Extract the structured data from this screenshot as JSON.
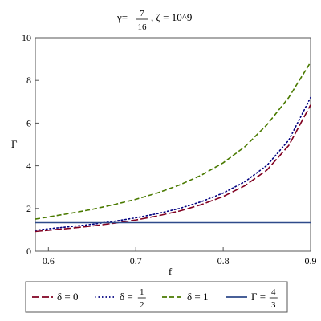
{
  "chart_data": {
    "type": "line",
    "title": {
      "gamma_label": "γ=",
      "gamma_num": "7",
      "gamma_den": "16",
      "rest": ", ζ = 10^9"
    },
    "xlabel": "f",
    "ylabel": "Γ",
    "xlim": [
      0.585,
      0.9
    ],
    "ylim": [
      0,
      10
    ],
    "x_ticks": [
      "0.6",
      "0.7",
      "0.8",
      "0.9"
    ],
    "x_tick_values": [
      0.6,
      0.7,
      0.8,
      0.9
    ],
    "y_ticks": [
      "0",
      "2",
      "4",
      "6",
      "8",
      "10"
    ],
    "y_tick_values": [
      0,
      2,
      4,
      6,
      8,
      10
    ],
    "grid": false,
    "legend_position": "bottom",
    "x": [
      0.585,
      0.6,
      0.625,
      0.65,
      0.675,
      0.7,
      0.725,
      0.75,
      0.775,
      0.8,
      0.825,
      0.85,
      0.875,
      0.9
    ],
    "series": [
      {
        "legend_left": "δ = 0",
        "color": "#800020",
        "style": "longdash",
        "values": [
          0.92,
          0.98,
          1.07,
          1.18,
          1.31,
          1.46,
          1.65,
          1.88,
          2.18,
          2.56,
          3.07,
          3.8,
          4.95,
          6.85
        ]
      },
      {
        "legend_left": "δ =",
        "legend_num": "1",
        "legend_den": "2",
        "color": "#000080",
        "style": "dot",
        "values": [
          0.98,
          1.05,
          1.15,
          1.26,
          1.4,
          1.56,
          1.76,
          2.0,
          2.32,
          2.72,
          3.26,
          4.02,
          5.2,
          7.2
        ]
      },
      {
        "legend_left": "δ = 1",
        "color": "#4a7a00",
        "style": "dash",
        "values": [
          1.5,
          1.6,
          1.77,
          1.96,
          2.18,
          2.43,
          2.73,
          3.1,
          3.56,
          4.14,
          4.9,
          5.92,
          7.2,
          8.85
        ]
      },
      {
        "legend_left": "Γ =",
        "legend_num": "4",
        "legend_den": "3",
        "color": "#2e4a8a",
        "style": "solid",
        "values": [
          1.3333,
          1.3333,
          1.3333,
          1.3333,
          1.3333,
          1.3333,
          1.3333,
          1.3333,
          1.3333,
          1.3333,
          1.3333,
          1.3333,
          1.3333,
          1.3333
        ]
      }
    ]
  }
}
